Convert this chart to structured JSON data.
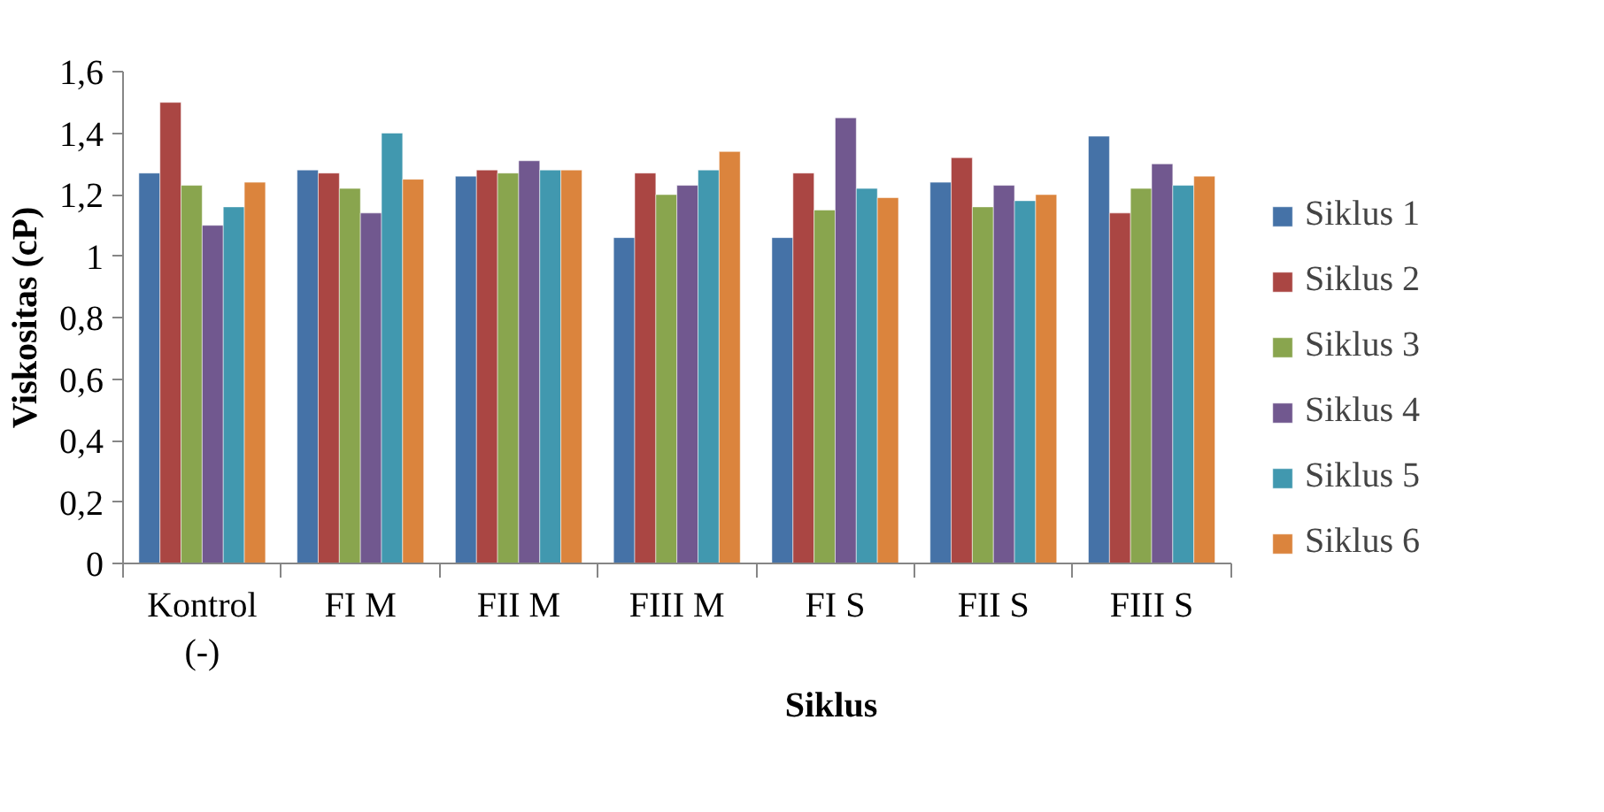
{
  "chart_data": {
    "type": "bar",
    "xlabel": "Siklus",
    "ylabel": "Viskositas (cP)",
    "categories": [
      "Kontrol\n(-)",
      "FI M",
      "FII M",
      "FIII M",
      "FI S",
      "FII S",
      "FIII S"
    ],
    "series": [
      {
        "name": "Siklus 1",
        "color": "#4572a7",
        "values": [
          1.27,
          1.28,
          1.26,
          1.06,
          1.06,
          1.24,
          1.39
        ]
      },
      {
        "name": "Siklus 2",
        "color": "#aa4643",
        "values": [
          1.5,
          1.27,
          1.28,
          1.27,
          1.27,
          1.32,
          1.14
        ]
      },
      {
        "name": "Siklus 3",
        "color": "#89a54e",
        "values": [
          1.23,
          1.22,
          1.27,
          1.2,
          1.15,
          1.16,
          1.22
        ]
      },
      {
        "name": "Siklus 4",
        "color": "#71588f",
        "values": [
          1.1,
          1.14,
          1.31,
          1.23,
          1.45,
          1.23,
          1.3
        ]
      },
      {
        "name": "Siklus 5",
        "color": "#4198af",
        "values": [
          1.16,
          1.4,
          1.28,
          1.28,
          1.22,
          1.18,
          1.23
        ]
      },
      {
        "name": "Siklus 6",
        "color": "#db843d",
        "values": [
          1.24,
          1.25,
          1.28,
          1.34,
          1.19,
          1.2,
          1.26
        ]
      }
    ],
    "ylim": [
      0,
      1.6
    ],
    "yticks": [
      0,
      {
        "value": 0.2,
        "label": "0,2"
      },
      {
        "value": 0.4,
        "label": "0,4"
      },
      {
        "value": 0.6,
        "label": "0,6"
      },
      {
        "value": 0.8,
        "label": "0,8"
      },
      1,
      {
        "value": 1.2,
        "label": "1,2"
      },
      {
        "value": 1.4,
        "label": "1,4"
      },
      {
        "value": 1.6,
        "label": "1,6"
      }
    ],
    "grid": false,
    "legend": "right"
  }
}
